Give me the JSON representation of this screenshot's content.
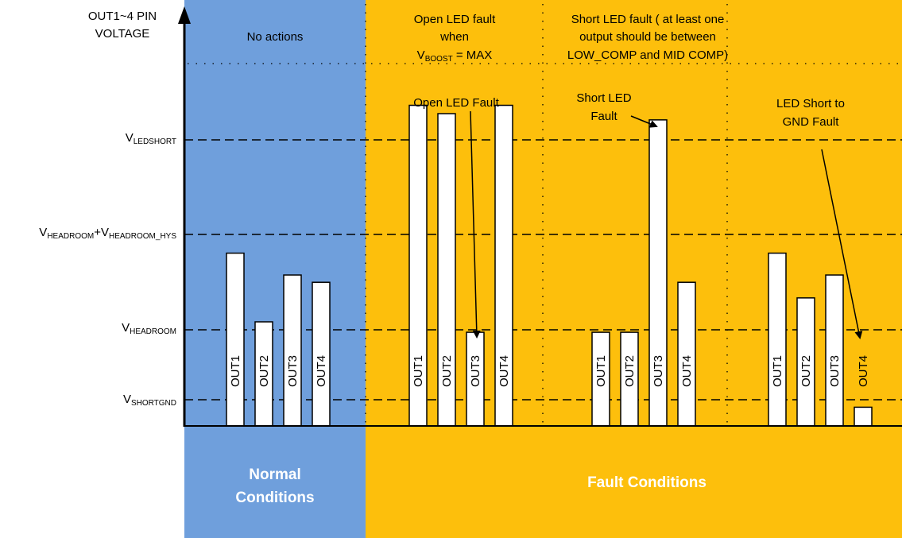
{
  "colors": {
    "normal_bg": "#6f9fdc",
    "fault_bg": "#fdbf0c"
  },
  "y_axis": {
    "title_line1": "OUT1~4 PIN",
    "title_line2": "VOLTAGE"
  },
  "thresholds": [
    {
      "id": "ledshort",
      "base": "V",
      "sub": "LEDSHORT"
    },
    {
      "id": "headroom_hys",
      "base": "V",
      "sub": "HEADROOM",
      "plus": "+V",
      "sub2": "HEADROOM_HYS"
    },
    {
      "id": "headroom",
      "base": "V",
      "sub": "HEADROOM"
    },
    {
      "id": "shortgnd",
      "base": "V",
      "sub": "SHORTGND"
    }
  ],
  "captions": {
    "no_actions": "No actions",
    "open_fault_l1": "Open LED fault",
    "open_fault_l2": "when",
    "open_fault_v": "V",
    "open_fault_sub": "BOOST",
    "open_fault_rest": " = MAX",
    "short_fault_l1": "Short LED fault ( at least one",
    "short_fault_l2": "output should be between",
    "short_fault_l3": "LOW_COMP and MID COMP)",
    "open_led_fault": "Open LED Fault",
    "short_led_fault_l1": "Short LED",
    "short_led_fault_l2": "Fault",
    "gnd_fault_l1": "LED Short to",
    "gnd_fault_l2": "GND Fault"
  },
  "regions": {
    "normal_l1": "Normal",
    "normal_l2": "Conditions",
    "fault": "Fault Conditions"
  },
  "groups": [
    {
      "name": "normal",
      "bars": [
        {
          "label": "OUT1",
          "level": 1.66
        },
        {
          "label": "OUT2",
          "level": 1.0
        },
        {
          "label": "OUT3",
          "level": 1.45
        },
        {
          "label": "OUT4",
          "level": 1.38
        }
      ]
    },
    {
      "name": "open-fault",
      "bars": [
        {
          "label": "OUT1",
          "level": 3.08
        },
        {
          "label": "OUT2",
          "level": 3.0
        },
        {
          "label": "OUT3",
          "level": 0.9
        },
        {
          "label": "OUT4",
          "level": 3.08
        }
      ]
    },
    {
      "name": "short-fault",
      "bars": [
        {
          "label": "OUT1",
          "level": 0.9
        },
        {
          "label": "OUT2",
          "level": 0.9
        },
        {
          "label": "OUT3",
          "level": 2.94
        },
        {
          "label": "OUT4",
          "level": 1.38
        }
      ]
    },
    {
      "name": "gnd-fault",
      "bars": [
        {
          "label": "OUT1",
          "level": 1.66
        },
        {
          "label": "OUT2",
          "level": 1.23
        },
        {
          "label": "OUT3",
          "level": 1.45
        },
        {
          "label": "OUT4",
          "level": 0.18
        }
      ]
    }
  ]
}
